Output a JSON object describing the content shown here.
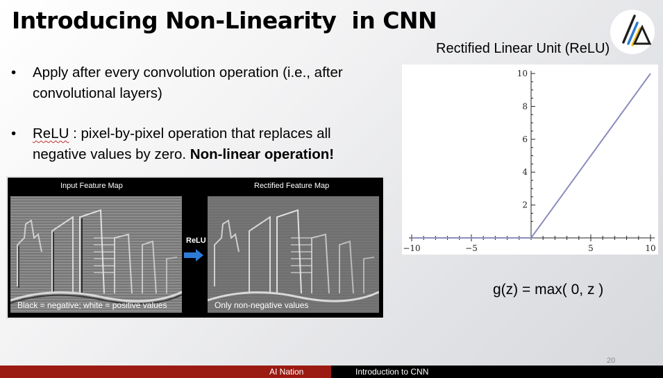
{
  "slide": {
    "title": "Introducing Non-Linearity  in CNN",
    "page_number": "20"
  },
  "bullets": [
    {
      "line1": "Apply after every convolution operation (i.e., after",
      "line2": "convolutional layers)"
    },
    {
      "term": "ReLU",
      "line1_rest": " : pixel-by-pixel operation that replaces all",
      "line2_plain": "negative values by zero. ",
      "line2_bold": "Non-linear operation!"
    }
  ],
  "feature_maps": {
    "input_label": "Input Feature Map",
    "rectified_label": "Rectified Feature Map",
    "arrow_label": "ReLU",
    "input_caption": "Black = negative; white = positive values",
    "rectified_caption": "Only non-negative values"
  },
  "chart": {
    "heading": "Rectified Linear Unit (ReLU)",
    "formula": "g(z) = max( 0, z )"
  },
  "chart_data": {
    "type": "line",
    "title": "Rectified Linear Unit (ReLU)",
    "xlabel": "",
    "ylabel": "",
    "xlim": [
      -10,
      10
    ],
    "ylim": [
      0,
      10
    ],
    "x_ticks": [
      -10,
      -5,
      5,
      10
    ],
    "y_ticks": [
      2,
      4,
      6,
      8,
      10
    ],
    "series": [
      {
        "x": [
          -10,
          0,
          10
        ],
        "y": [
          0,
          0,
          10
        ],
        "color": "#8b8bbf"
      }
    ],
    "grid": false
  },
  "footer": {
    "left": "AI Nation",
    "right": "Introduction to CNN"
  },
  "colors": {
    "footer_left": "#9b1a12",
    "footer_right": "#000000",
    "relu_line": "#8b8bbf",
    "arrow": "#2e7bd6"
  }
}
